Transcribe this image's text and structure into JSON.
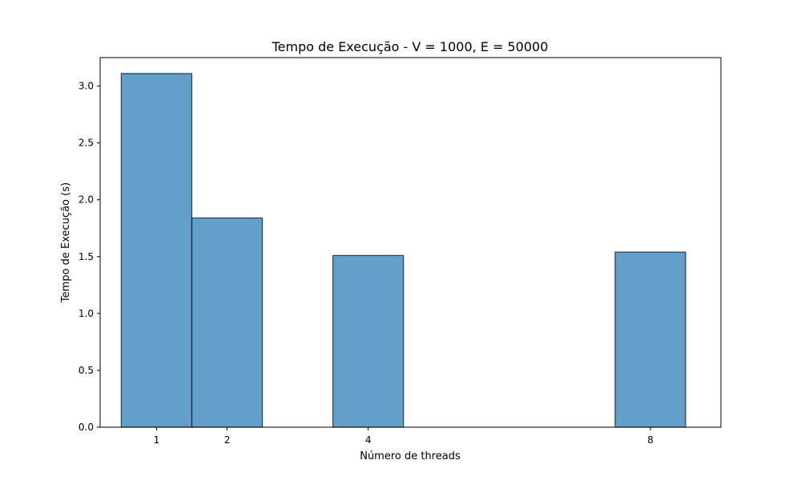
{
  "chart_data": {
    "type": "bar",
    "title": "Tempo de Execução - V = 1000, E = 50000",
    "xlabel": "Número de threads",
    "ylabel": "Tempo de Execução (s)",
    "x": [
      1,
      2,
      4,
      8
    ],
    "x_tick_labels": [
      "1",
      "2",
      "4",
      "8"
    ],
    "values": [
      3.11,
      1.84,
      1.51,
      1.54
    ],
    "bar_width": 1.0,
    "xlim": [
      0.2,
      9.0
    ],
    "ylim": [
      0,
      3.25
    ],
    "y_ticks": [
      0.0,
      0.5,
      1.0,
      1.5,
      2.0,
      2.5,
      3.0
    ],
    "y_tick_labels": [
      "0.0",
      "0.5",
      "1.0",
      "1.5",
      "2.0",
      "2.5",
      "3.0"
    ],
    "grid": false,
    "colors": {
      "bar_fill": "#1f77b4",
      "bar_edge": "#000000"
    }
  }
}
